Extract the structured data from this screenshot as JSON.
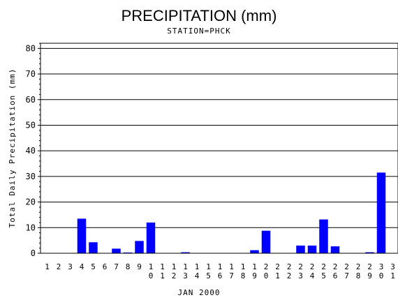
{
  "chart_data": {
    "type": "bar",
    "title": "PRECIPITATION (mm)",
    "subtitle": "STATION=PHCK",
    "xlabel": "JAN 2000",
    "ylabel": "Total Daily Precipitation (mm)",
    "ylim": [
      0,
      82
    ],
    "yticks": [
      0,
      10,
      20,
      30,
      40,
      50,
      60,
      70,
      80
    ],
    "grid": true,
    "bar_color": "#0000ff",
    "categories": [
      "1",
      "2",
      "3",
      "4",
      "5",
      "6",
      "7",
      "8",
      "9",
      "10",
      "11",
      "12",
      "13",
      "14",
      "15",
      "16",
      "17",
      "18",
      "19",
      "20",
      "21",
      "22",
      "23",
      "24",
      "25",
      "26",
      "27",
      "28",
      "29",
      "30",
      "31"
    ],
    "values": [
      0,
      0,
      0,
      13.5,
      4.3,
      0,
      1.8,
      0.3,
      4.8,
      12.0,
      0,
      0,
      0.4,
      0,
      0,
      0,
      0,
      0,
      1.2,
      8.8,
      0,
      0,
      3.0,
      3.0,
      13.2,
      2.7,
      0,
      0,
      0.4,
      31.5,
      0
    ]
  }
}
